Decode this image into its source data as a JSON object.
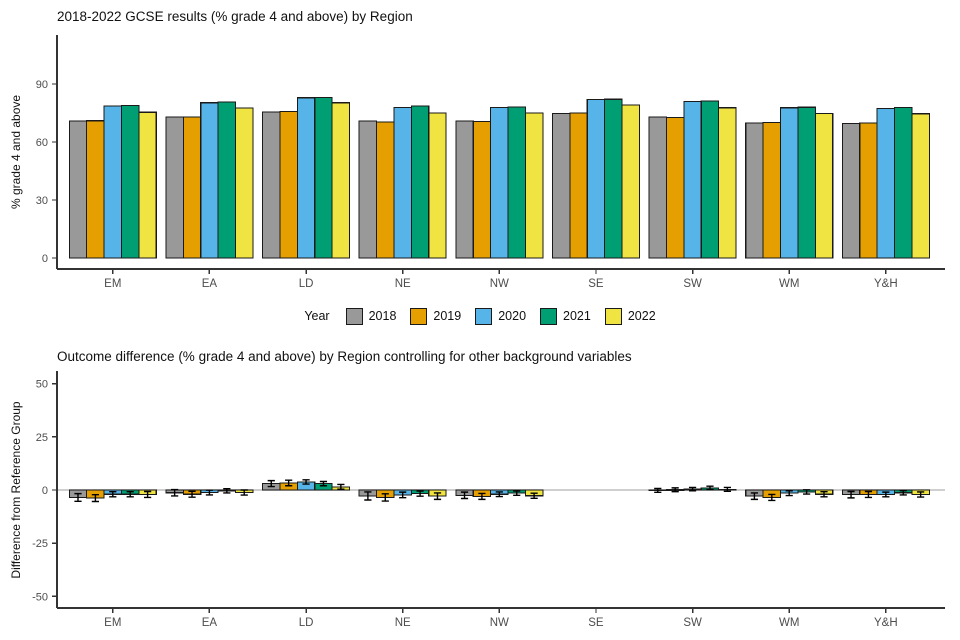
{
  "colors": {
    "background": "#ffffff",
    "axis": "#333333",
    "tick_text": "#4d4d4d",
    "title_text": "#111111",
    "bar_border": "#1a1a1a",
    "error_bar": "#000000",
    "zero_line": "#bfbfbf"
  },
  "legend": {
    "title": "Year",
    "items": [
      {
        "label": "2018",
        "color": "#999999"
      },
      {
        "label": "2019",
        "color": "#E69F00"
      },
      {
        "label": "2020",
        "color": "#56B4E9"
      },
      {
        "label": "2021",
        "color": "#009E73"
      },
      {
        "label": "2022",
        "color": "#F0E442"
      }
    ]
  },
  "chart_data": [
    {
      "type": "bar",
      "title": "2018-2022 GCSE results (% grade 4 and above) by Region",
      "xlabel": "",
      "ylabel": "% grade 4 and above",
      "categories": [
        "EM",
        "EA",
        "LD",
        "NE",
        "NW",
        "SE",
        "SW",
        "WM",
        "Y&H"
      ],
      "y_ticks": [
        0,
        30,
        60,
        90
      ],
      "ylim": [
        0,
        115
      ],
      "grid": false,
      "legend_position": "bottom",
      "series": [
        {
          "name": "2018",
          "color": "#999999",
          "values": [
            70.9,
            72.9,
            75.5,
            70.9,
            70.8,
            74.7,
            72.9,
            69.8,
            69.5
          ]
        },
        {
          "name": "2019",
          "color": "#E69F00",
          "values": [
            71.0,
            73.0,
            75.7,
            70.4,
            70.6,
            75.0,
            72.7,
            70.0,
            69.9
          ]
        },
        {
          "name": "2020",
          "color": "#56B4E9",
          "values": [
            78.6,
            80.3,
            82.9,
            77.9,
            77.9,
            81.9,
            80.9,
            77.7,
            77.4
          ]
        },
        {
          "name": "2021",
          "color": "#009E73",
          "values": [
            78.8,
            80.6,
            83.1,
            78.6,
            78.2,
            82.1,
            81.2,
            78.0,
            77.8
          ]
        },
        {
          "name": "2022",
          "color": "#F0E442",
          "values": [
            75.4,
            77.6,
            80.3,
            75.1,
            75.0,
            79.1,
            77.7,
            74.7,
            74.6
          ]
        }
      ]
    },
    {
      "type": "bar_with_error",
      "title": "Outcome difference (% grade 4 and above) by Region controlling for other background variables",
      "xlabel": "",
      "ylabel": "Difference from Reference Group",
      "categories": [
        "EM",
        "EA",
        "LD",
        "NE",
        "NW",
        "SE",
        "SW",
        "WM",
        "Y&H"
      ],
      "y_ticks": [
        50,
        25,
        0,
        -25,
        -50
      ],
      "ylim": [
        -55,
        55
      ],
      "grid": false,
      "reference_category": "SE",
      "zero_line": true,
      "series": [
        {
          "name": "2018",
          "color": "#999999",
          "values": [
            -3.5,
            -1.3,
            3.0,
            -2.8,
            -2.5,
            null,
            -0.2,
            -2.9,
            -2.2
          ],
          "errors": [
            1.8,
            1.5,
            1.4,
            1.9,
            1.5,
            null,
            0.9,
            1.5,
            1.5
          ]
        },
        {
          "name": "2019",
          "color": "#E69F00",
          "values": [
            -3.8,
            -2.0,
            3.3,
            -3.5,
            -3.0,
            null,
            0.1,
            -3.5,
            -2.1
          ],
          "errors": [
            1.6,
            1.4,
            1.3,
            1.7,
            1.4,
            null,
            0.9,
            1.4,
            1.4
          ]
        },
        {
          "name": "2020",
          "color": "#56B4E9",
          "values": [
            -2.0,
            -1.2,
            3.8,
            -2.3,
            -2.0,
            null,
            0.4,
            -1.5,
            -2.1
          ],
          "errors": [
            1.2,
            1.1,
            1.0,
            1.3,
            1.1,
            null,
            0.8,
            1.1,
            1.1
          ]
        },
        {
          "name": "2021",
          "color": "#009E73",
          "values": [
            -2.0,
            -0.4,
            3.0,
            -1.7,
            -1.5,
            null,
            1.0,
            -0.9,
            -1.3
          ],
          "errors": [
            1.2,
            1.0,
            1.0,
            1.2,
            1.0,
            null,
            0.8,
            1.0,
            1.0
          ]
        },
        {
          "name": "2022",
          "color": "#F0E442",
          "values": [
            -2.1,
            -1.2,
            1.5,
            -2.9,
            -2.7,
            null,
            0.3,
            -2.0,
            -2.1
          ],
          "errors": [
            1.4,
            1.2,
            1.1,
            1.5,
            1.2,
            null,
            0.9,
            1.2,
            1.2
          ]
        }
      ]
    }
  ]
}
